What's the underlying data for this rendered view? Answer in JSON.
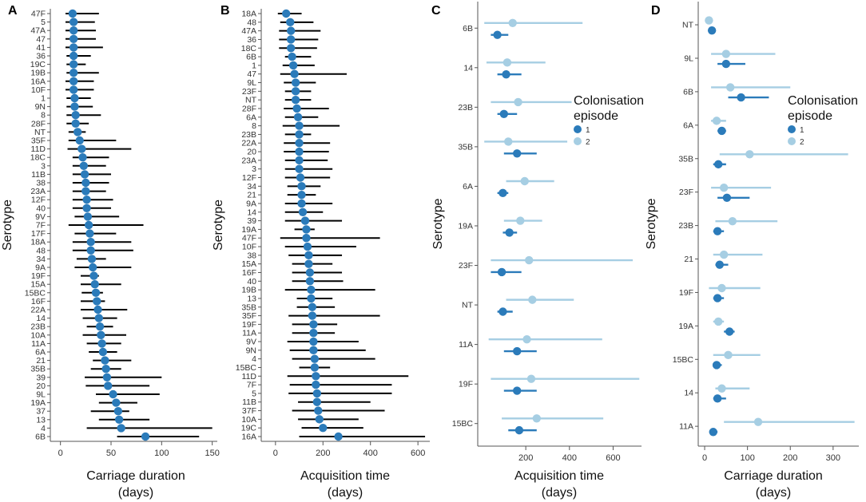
{
  "colors": {
    "episode1": "#2b7bba",
    "episode2": "#a6cee3",
    "black": "#000000",
    "axis": "#555555",
    "marker": "#2b7bba"
  },
  "chart_data": [
    {
      "panel": "A",
      "type": "scatter",
      "style": "black-ci",
      "xlabel_line1": "Carriage duration",
      "xlabel_line2": "(days)",
      "ylabel": "Serotype",
      "xlim": [
        -10,
        155
      ],
      "xticks": [
        0,
        50,
        100,
        150
      ],
      "categories": [
        "47F",
        "5",
        "47A",
        "47",
        "41",
        "36",
        "19C",
        "19B",
        "16A",
        "10F",
        "1",
        "9N",
        "8",
        "28F",
        "NT",
        "35F",
        "11D",
        "18C",
        "3",
        "11B",
        "38",
        "23A",
        "12F",
        "40",
        "9V",
        "7F",
        "17F",
        "18A",
        "48",
        "34",
        "9A",
        "19F",
        "15A",
        "15BC",
        "16F",
        "22A",
        "14",
        "23B",
        "10A",
        "11A",
        "6A",
        "21",
        "35B",
        "39",
        "20",
        "9L",
        "19A",
        "37",
        "13",
        "4",
        "6B"
      ],
      "series": [
        {
          "name": "estimate",
          "values": [
            12,
            13,
            13,
            13,
            13,
            13,
            13,
            13,
            13,
            13,
            14,
            14,
            15,
            15,
            17,
            19,
            21,
            22,
            23,
            24,
            25,
            25,
            26,
            26,
            27,
            28,
            29,
            30,
            30,
            31,
            32,
            33,
            34,
            35,
            36,
            37,
            38,
            39,
            40,
            41,
            42,
            44,
            45,
            46,
            47,
            52,
            55,
            57,
            58,
            60,
            84
          ]
        },
        {
          "name": "lower",
          "values": [
            5,
            5,
            5,
            5,
            5,
            6,
            6,
            6,
            5,
            5,
            6,
            6,
            6,
            6,
            8,
            8,
            7,
            12,
            12,
            12,
            12,
            12,
            12,
            12,
            14,
            8,
            14,
            12,
            12,
            16,
            14,
            20,
            20,
            21,
            20,
            20,
            22,
            26,
            22,
            26,
            28,
            32,
            30,
            24,
            25,
            35,
            38,
            30,
            38,
            26,
            56
          ]
        },
        {
          "name": "upper",
          "values": [
            38,
            34,
            35,
            35,
            42,
            30,
            25,
            38,
            33,
            33,
            30,
            32,
            40,
            28,
            25,
            55,
            70,
            48,
            45,
            50,
            48,
            45,
            52,
            50,
            58,
            82,
            55,
            70,
            72,
            45,
            70,
            38,
            60,
            42,
            44,
            66,
            56,
            52,
            65,
            60,
            56,
            70,
            60,
            100,
            88,
            98,
            76,
            68,
            88,
            150,
            137
          ]
        }
      ]
    },
    {
      "panel": "B",
      "type": "scatter",
      "style": "black-ci",
      "xlabel_line1": "Acquisition time",
      "xlabel_line2": "(days)",
      "ylabel": "Serotype",
      "xlim": [
        -60,
        650
      ],
      "xticks": [
        0,
        200,
        400,
        600
      ],
      "categories": [
        "18A",
        "48",
        "47A",
        "36",
        "18C",
        "6B",
        "1",
        "47",
        "9L",
        "23F",
        "NT",
        "28F",
        "6A",
        "8",
        "23B",
        "22A",
        "20",
        "23A",
        "3",
        "12F",
        "34",
        "21",
        "9A",
        "14",
        "39",
        "19A",
        "47F",
        "10F",
        "38",
        "15A",
        "16F",
        "40",
        "19B",
        "13",
        "35B",
        "35F",
        "19F",
        "11A",
        "9V",
        "9N",
        "4",
        "15BC",
        "11D",
        "7F",
        "5",
        "11B",
        "37F",
        "10A",
        "19C",
        "16A"
      ],
      "series": [
        {
          "name": "estimate",
          "values": [
            45,
            62,
            65,
            65,
            65,
            70,
            75,
            80,
            85,
            85,
            85,
            90,
            95,
            100,
            100,
            100,
            100,
            100,
            100,
            105,
            110,
            110,
            110,
            115,
            125,
            130,
            130,
            135,
            140,
            140,
            145,
            145,
            150,
            150,
            155,
            155,
            160,
            160,
            160,
            160,
            165,
            165,
            170,
            170,
            175,
            175,
            180,
            185,
            200,
            265
          ]
        },
        {
          "name": "lower",
          "values": [
            10,
            20,
            15,
            15,
            15,
            40,
            30,
            20,
            35,
            40,
            40,
            35,
            40,
            30,
            40,
            35,
            35,
            40,
            40,
            40,
            50,
            50,
            40,
            40,
            40,
            80,
            20,
            40,
            55,
            70,
            70,
            70,
            40,
            90,
            90,
            55,
            70,
            70,
            50,
            60,
            70,
            100,
            50,
            60,
            55,
            95,
            70,
            95,
            110,
            100
          ]
        },
        {
          "name": "upper",
          "values": [
            110,
            160,
            190,
            180,
            175,
            150,
            165,
            300,
            170,
            150,
            150,
            225,
            180,
            270,
            150,
            230,
            225,
            220,
            240,
            230,
            190,
            170,
            240,
            200,
            280,
            165,
            440,
            340,
            280,
            240,
            280,
            285,
            420,
            240,
            250,
            440,
            260,
            250,
            350,
            380,
            420,
            230,
            560,
            490,
            490,
            400,
            460,
            350,
            370,
            630
          ]
        }
      ]
    },
    {
      "panel": "C",
      "type": "scatter",
      "style": "two-episode",
      "xlabel_line1": "Acquisition time",
      "xlabel_line2": "(days)",
      "ylabel": "Serotype",
      "xlim": [
        -20,
        730
      ],
      "xticks": [
        200,
        400,
        600
      ],
      "categories": [
        "6B",
        "14",
        "23B",
        "35B",
        "6A",
        "19A",
        "23F",
        "NT",
        "11A",
        "19F",
        "15BC"
      ],
      "legend": {
        "title_line1": "Colonisation",
        "title_line2": "episode",
        "items": [
          "1",
          "2"
        ]
      },
      "series": [
        {
          "name": "1",
          "values": [
            70,
            110,
            100,
            160,
            95,
            125,
            90,
            95,
            160,
            160,
            170
          ],
          "lower": [
            40,
            70,
            70,
            100,
            70,
            95,
            40,
            70,
            100,
            100,
            120
          ],
          "upper": [
            120,
            180,
            160,
            250,
            120,
            160,
            180,
            140,
            250,
            250,
            250
          ]
        },
        {
          "name": "2",
          "values": [
            140,
            115,
            165,
            120,
            195,
            175,
            215,
            230,
            205,
            225,
            250
          ],
          "lower": [
            10,
            20,
            40,
            10,
            110,
            100,
            40,
            110,
            30,
            40,
            90
          ],
          "upper": [
            460,
            290,
            410,
            390,
            330,
            275,
            690,
            420,
            550,
            720,
            555
          ]
        }
      ]
    },
    {
      "panel": "D",
      "type": "scatter",
      "style": "two-episode",
      "xlabel_line1": "Carriage duration",
      "xlabel_line2": "(days)",
      "ylabel": "Serotype",
      "xlim": [
        -15,
        360
      ],
      "xticks": [
        0,
        100,
        200,
        300
      ],
      "categories": [
        "NT",
        "9L",
        "6B",
        "6A",
        "35B",
        "23F",
        "23B",
        "21",
        "19F",
        "19A",
        "15BC",
        "14",
        "11A"
      ],
      "legend": {
        "title_line1": "Colonisation",
        "title_line2": "episode",
        "items": [
          "1",
          "2"
        ]
      },
      "series": [
        {
          "name": "1",
          "values": [
            17,
            50,
            85,
            40,
            32,
            52,
            30,
            35,
            30,
            58,
            28,
            30,
            20
          ],
          "lower": [
            12,
            30,
            55,
            30,
            20,
            30,
            20,
            25,
            20,
            45,
            20,
            20,
            12
          ],
          "upper": [
            22,
            95,
            150,
            50,
            50,
            105,
            45,
            55,
            45,
            70,
            40,
            50,
            30
          ]
        },
        {
          "name": "2",
          "values": [
            10,
            50,
            60,
            28,
            105,
            45,
            65,
            45,
            40,
            32,
            55,
            40,
            125
          ],
          "lower": [
            5,
            15,
            15,
            15,
            35,
            15,
            25,
            20,
            10,
            20,
            20,
            25,
            45
          ],
          "upper": [
            15,
            165,
            200,
            50,
            335,
            155,
            170,
            135,
            130,
            45,
            130,
            105,
            350
          ]
        }
      ]
    }
  ]
}
